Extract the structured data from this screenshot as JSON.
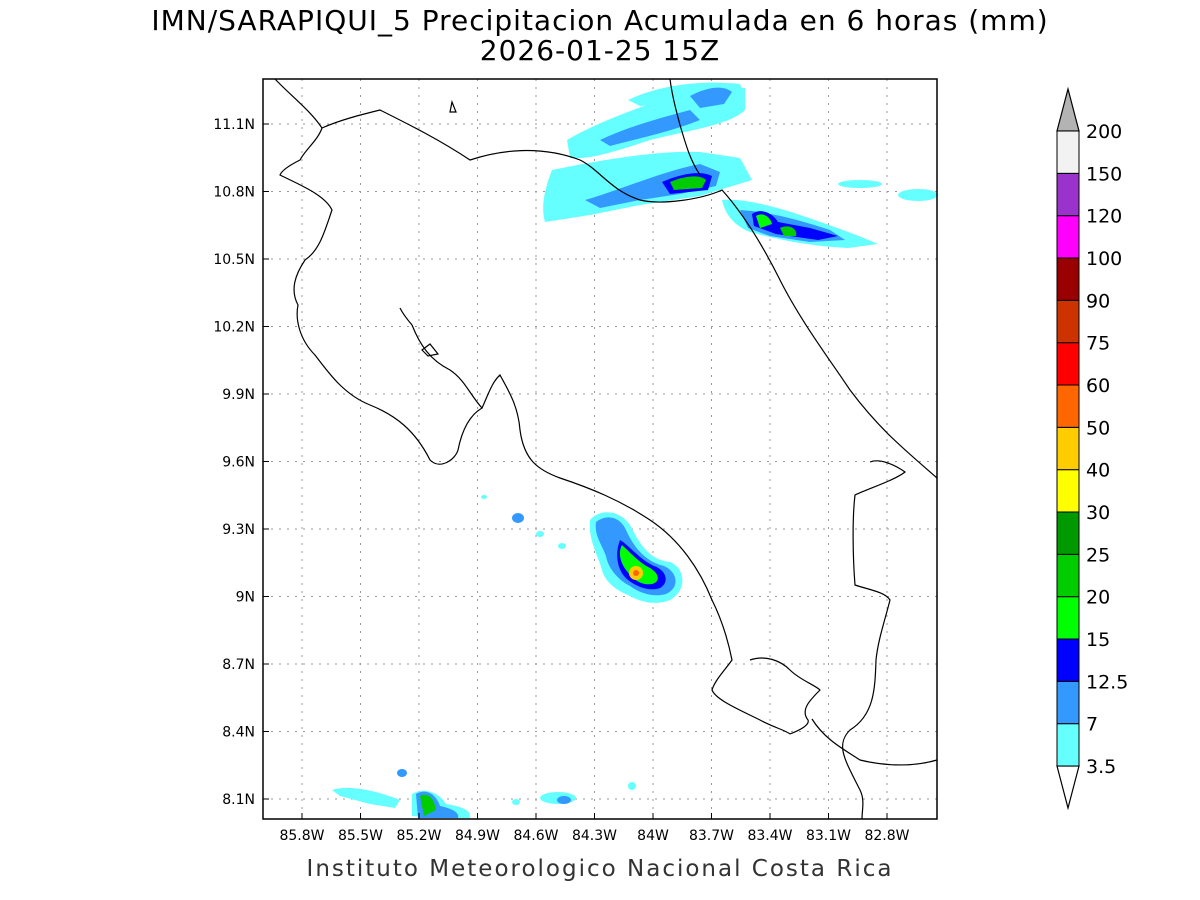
{
  "title": {
    "line1": "IMN/SARAPIQUI_5 Precipitacion Acumulada en 6 horas (mm)",
    "line2": "2026-01-25 15Z"
  },
  "credit": "Instituto Meteorologico Nacional Costa Rica",
  "map": {
    "lon_ticks": [
      "85.8W",
      "85.5W",
      "85.2W",
      "84.9W",
      "84.6W",
      "84.3W",
      "84W",
      "83.7W",
      "83.4W",
      "83.1W",
      "82.8W"
    ],
    "lat_ticks": [
      "11.1N",
      "10.8N",
      "10.5N",
      "10.2N",
      "9.9N",
      "9.6N",
      "9.3N",
      "9N",
      "8.7N",
      "8.4N",
      "8.1N"
    ],
    "grid": true
  },
  "colorbar": {
    "labels": [
      "3.5",
      "7",
      "12.5",
      "15",
      "20",
      "25",
      "30",
      "40",
      "50",
      "60",
      "75",
      "90",
      "100",
      "120",
      "150",
      "200"
    ],
    "colors": [
      "#ffffff",
      "#66ffff",
      "#3399ff",
      "#0000ff",
      "#00ff00",
      "#00cc00",
      "#009900",
      "#ffff00",
      "#ffcc00",
      "#ff6600",
      "#ff0000",
      "#cc3300",
      "#990000",
      "#ff00ff",
      "#9933cc",
      "#f2f2f2",
      "#b3b3b3"
    ],
    "units": "mm"
  }
}
